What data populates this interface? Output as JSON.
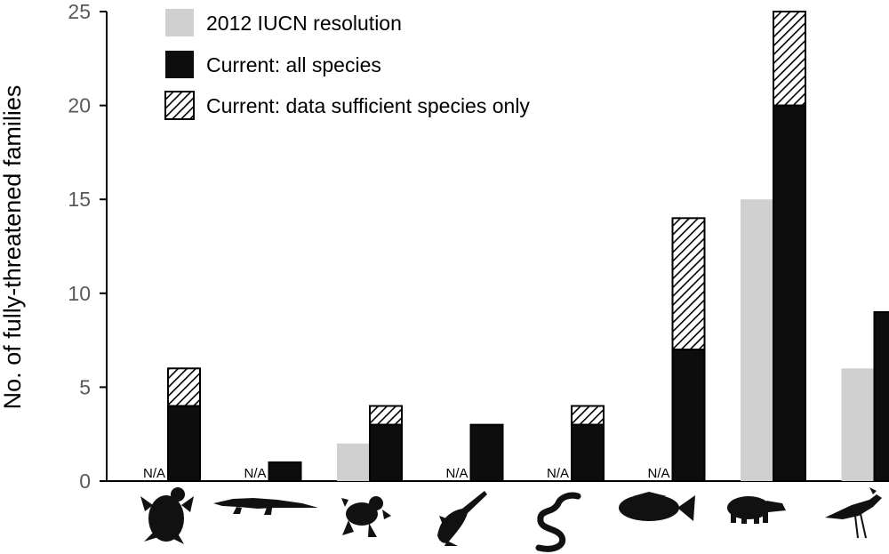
{
  "chart_data": {
    "type": "bar",
    "stacked_series_on_current_bar": true,
    "ylabel": "No. of fully-threatened families",
    "xlabel": "",
    "ylim": [
      0,
      25
    ],
    "yticks": [
      0,
      5,
      10,
      15,
      20,
      25
    ],
    "grid": false,
    "legend_position": "top-left",
    "categories": [
      "turtle-icon",
      "crocodile-icon",
      "frog-icon",
      "sawfish-icon",
      "snake-icon",
      "grouper-fish-icon",
      "tapir-icon",
      "secretary-bird-icon"
    ],
    "na_label": "N/A",
    "series": [
      {
        "name": "2012 IUCN resolution",
        "color": "#d0d0d0",
        "pattern": "solid",
        "values": [
          null,
          null,
          2,
          null,
          null,
          null,
          15,
          6
        ]
      },
      {
        "name": "Current: all species",
        "color": "#0d0d0d",
        "pattern": "solid",
        "values": [
          4,
          1,
          3,
          3,
          3,
          7,
          20,
          9
        ]
      },
      {
        "name": "Current: data sufficient species only",
        "color": "#000000",
        "pattern": "hatched",
        "values": [
          6,
          1,
          4,
          3,
          4,
          14,
          25,
          9
        ]
      }
    ]
  }
}
